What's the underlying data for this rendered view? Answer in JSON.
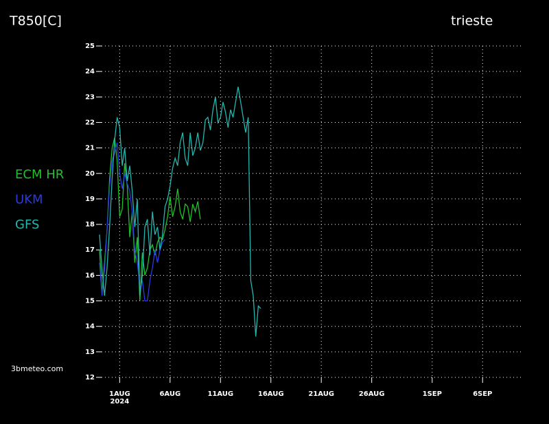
{
  "chart_data": {
    "type": "line",
    "title": "T850[C]",
    "location": "trieste",
    "source": "3bmeteo.com",
    "x_sublabel": "2024",
    "xlim": [
      -2,
      40
    ],
    "ylim": [
      12,
      25
    ],
    "xticks": [
      {
        "value": 0,
        "label": "1AUG"
      },
      {
        "value": 5,
        "label": "6AUG"
      },
      {
        "value": 10,
        "label": "11AUG"
      },
      {
        "value": 15,
        "label": "16AUG"
      },
      {
        "value": 20,
        "label": "21AUG"
      },
      {
        "value": 25,
        "label": "26AUG"
      },
      {
        "value": 31,
        "label": "1SEP"
      },
      {
        "value": 36,
        "label": "6SEP"
      }
    ],
    "yticks": [
      12,
      13,
      14,
      15,
      16,
      17,
      18,
      19,
      20,
      21,
      22,
      23,
      24,
      25
    ],
    "grid": true,
    "series": [
      {
        "name": "ECM HR",
        "color": "#22c02a",
        "x": [
          -2,
          -1.75,
          -1.5,
          -1.25,
          -1,
          -0.75,
          -0.5,
          -0.25,
          0,
          0.25,
          0.5,
          0.75,
          1,
          1.25,
          1.5,
          1.75,
          2,
          2.25,
          2.5,
          2.75,
          3,
          3.25,
          3.5,
          3.75,
          4,
          4.25,
          4.5,
          4.75,
          5,
          5.25,
          5.5,
          5.75,
          6,
          6.25,
          6.5,
          6.75,
          7,
          7.25,
          7.5,
          7.75,
          8
        ],
        "values": [
          17.0,
          15.3,
          16.5,
          17.8,
          19.8,
          21.0,
          21.4,
          20.5,
          18.3,
          18.6,
          20.4,
          19.5,
          17.5,
          18.5,
          16.5,
          17.5,
          15.0,
          16.9,
          16.0,
          16.3,
          17.0,
          17.2,
          16.8,
          17.3,
          17.5,
          17.4,
          17.8,
          18.3,
          19.1,
          18.3,
          18.7,
          19.4,
          18.5,
          18.2,
          18.8,
          18.7,
          18.1,
          18.8,
          18.5,
          18.9,
          18.2
        ]
      },
      {
        "name": "UKM",
        "color": "#2a3ce0",
        "x": [
          -2,
          -1.75,
          -1.5,
          -1.25,
          -1,
          -0.75,
          -0.5,
          -0.25,
          0,
          0.25,
          0.5,
          0.75,
          1,
          1.25,
          1.5,
          1.75,
          2,
          2.25,
          2.5,
          2.75,
          3,
          3.25,
          3.5,
          3.75,
          4,
          4.25,
          4.5
        ],
        "values": [
          16.5,
          15.2,
          16.2,
          17.8,
          19.5,
          20.5,
          20.8,
          21.2,
          20.0,
          19.4,
          20.0,
          19.6,
          19.3,
          18.5,
          17.0,
          16.5,
          15.5,
          15.8,
          15.0,
          15.0,
          15.8,
          16.3,
          17.0,
          16.5,
          17.0,
          17.3,
          17.4
        ]
      },
      {
        "name": "GFS",
        "color": "#22b8b0",
        "x": [
          -2,
          -1.75,
          -1.5,
          -1.25,
          -1,
          -0.75,
          -0.5,
          -0.25,
          0,
          0.25,
          0.5,
          0.75,
          1,
          1.25,
          1.5,
          1.75,
          2,
          2.25,
          2.5,
          2.75,
          3,
          3.25,
          3.5,
          3.75,
          4,
          4.25,
          4.5,
          4.75,
          5,
          5.25,
          5.5,
          5.75,
          6,
          6.25,
          6.5,
          6.75,
          7,
          7.25,
          7.5,
          7.75,
          8,
          8.25,
          8.5,
          8.75,
          9,
          9.25,
          9.5,
          9.75,
          10,
          10.25,
          10.5,
          10.75,
          11,
          11.25,
          11.5,
          11.75,
          12,
          12.25,
          12.5,
          12.75,
          13,
          13.25,
          13.5,
          13.75,
          14
        ],
        "values": [
          17.6,
          16.2,
          15.2,
          16.3,
          17.9,
          19.8,
          21.3,
          22.2,
          21.8,
          20.3,
          21.0,
          19.7,
          20.3,
          19.3,
          17.9,
          19.0,
          15.2,
          16.0,
          17.9,
          18.2,
          16.8,
          18.5,
          17.6,
          17.9,
          17.0,
          17.6,
          18.7,
          19.0,
          19.5,
          20.2,
          20.6,
          20.3,
          21.2,
          21.6,
          20.6,
          20.3,
          21.6,
          20.7,
          21.0,
          21.6,
          20.9,
          21.2,
          22.1,
          22.2,
          21.7,
          22.5,
          23.0,
          22.0,
          22.2,
          22.8,
          22.4,
          21.8,
          22.5,
          22.2,
          22.8,
          23.4,
          22.8,
          22.2,
          21.6,
          22.2,
          15.8,
          15.2,
          13.6,
          14.8,
          14.7
        ]
      }
    ]
  }
}
